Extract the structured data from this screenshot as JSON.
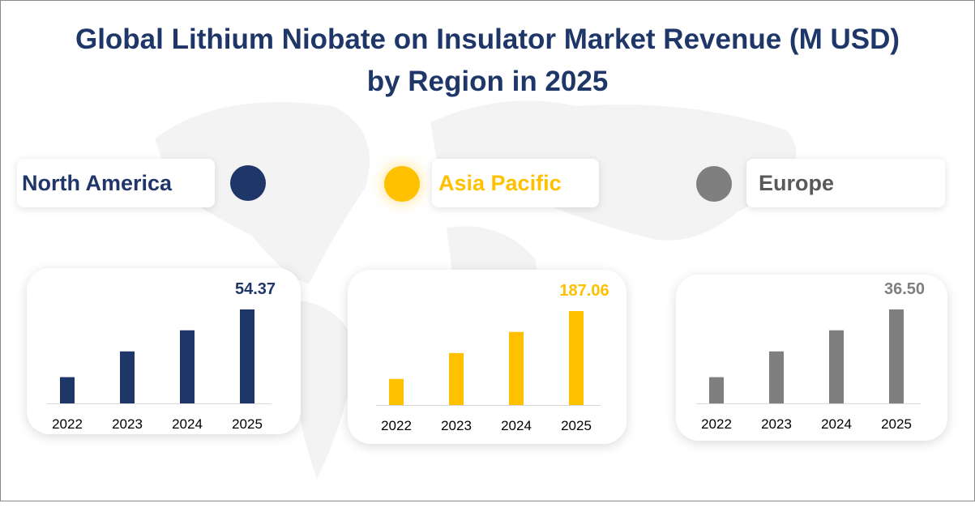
{
  "title_line1": "Global Lithium Niobate on Insulator Market Revenue (M USD)",
  "title_line2": "by Region in 2025",
  "chart_data": [
    {
      "type": "bar",
      "name": "North America",
      "color": "#1f3768",
      "categories": [
        "2022",
        "2023",
        "2024",
        "2025"
      ],
      "values": [
        15.2,
        30.1,
        42.3,
        54.37
      ],
      "labeled_value": "54.37"
    },
    {
      "type": "bar",
      "name": "Asia Pacific",
      "color": "#ffc000",
      "categories": [
        "2022",
        "2023",
        "2024",
        "2025"
      ],
      "values": [
        52.0,
        103.5,
        145.5,
        187.06
      ],
      "labeled_value": "187.06"
    },
    {
      "type": "bar",
      "name": "Europe",
      "color": "#7f7f7f",
      "categories": [
        "2022",
        "2023",
        "2024",
        "2025"
      ],
      "values": [
        10.2,
        20.2,
        28.4,
        36.5
      ],
      "labeled_value": "36.50"
    }
  ]
}
